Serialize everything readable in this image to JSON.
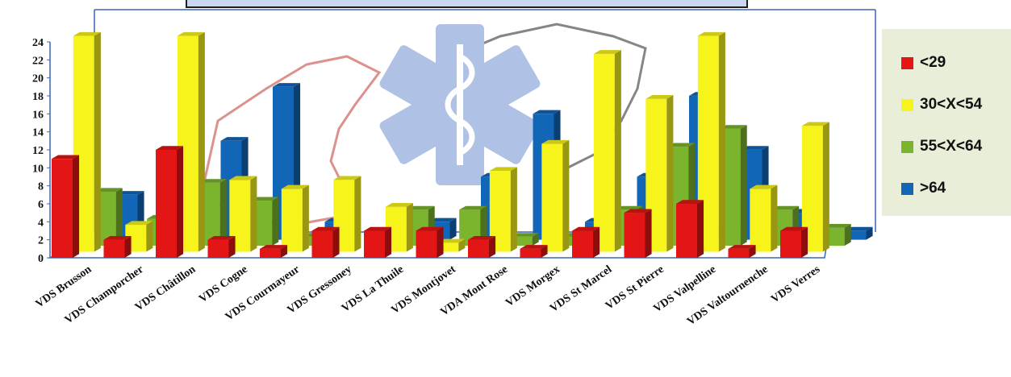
{
  "chart_data": {
    "type": "bar",
    "categories": [
      "VDS Brusson",
      "VDS Champorcher",
      "VDS Châtillon",
      "VDS Cogne",
      "VDS Courmayeur",
      "VDS Gressoney",
      "VDS La Thuile",
      "VDS Montjovet",
      "VDA Mont Rose",
      "VDS Morgex",
      "VDS St Marcel",
      "VDS St Pierre",
      "VDS Valpelline",
      "VDS Valtournenche",
      "VDS Verres"
    ],
    "series": [
      {
        "name": "<29",
        "color": "#e31515",
        "values": [
          11,
          2,
          12,
          2,
          1,
          3,
          3,
          3,
          2,
          1,
          3,
          5,
          6,
          1,
          3
        ]
      },
      {
        "name": "30<X<54",
        "color": "#f7f41c",
        "values": [
          24,
          3,
          24,
          8,
          7,
          8,
          5,
          1,
          9,
          12,
          22,
          17,
          24,
          7,
          14
        ]
      },
      {
        "name": "55<X<64",
        "color": "#7ab52d",
        "values": [
          6,
          3,
          7,
          5,
          1,
          0,
          4,
          4,
          1,
          1,
          4,
          11,
          13,
          4,
          2
        ]
      },
      {
        "name": ">64",
        "color": "#1166b8",
        "values": [
          5,
          1,
          11,
          17,
          2,
          0,
          2,
          7,
          14,
          2,
          7,
          16,
          10,
          3,
          1
        ]
      }
    ],
    "ylim": [
      0,
      24
    ],
    "yticks": [
      "0",
      "2",
      "4",
      "6",
      "8",
      "10",
      "12",
      "14",
      "16",
      "18",
      "20",
      "22",
      "24"
    ],
    "grid": false,
    "legend_position": "right"
  }
}
